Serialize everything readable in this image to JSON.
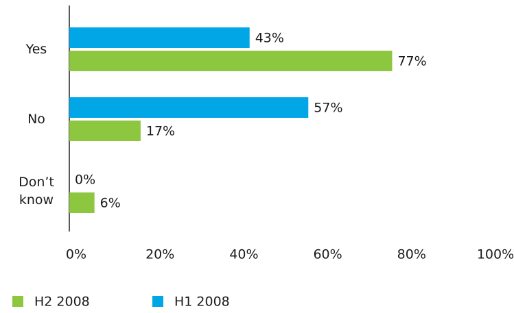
{
  "chart_data": {
    "type": "bar",
    "orientation": "horizontal",
    "categories": [
      "Yes",
      "No",
      "Don’t know"
    ],
    "series": [
      {
        "name": "H2 2008",
        "color": "#8dc63f",
        "values": [
          77,
          17,
          6
        ],
        "value_labels": [
          "77%",
          "17%",
          "6%"
        ]
      },
      {
        "name": "H1 2008",
        "color": "#00a6e6",
        "values": [
          43,
          57,
          0
        ],
        "value_labels": [
          "43%",
          "57%",
          "0%"
        ]
      }
    ],
    "xlim": [
      0,
      100
    ],
    "xticks": [
      {
        "value": 0,
        "label": "0%"
      },
      {
        "value": 20,
        "label": "20%"
      },
      {
        "value": 40,
        "label": "40%"
      },
      {
        "value": 60,
        "label": "60%"
      },
      {
        "value": 80,
        "label": "80%"
      },
      {
        "value": 100,
        "label": "100%"
      }
    ],
    "grid": false,
    "legend": "bottom"
  }
}
